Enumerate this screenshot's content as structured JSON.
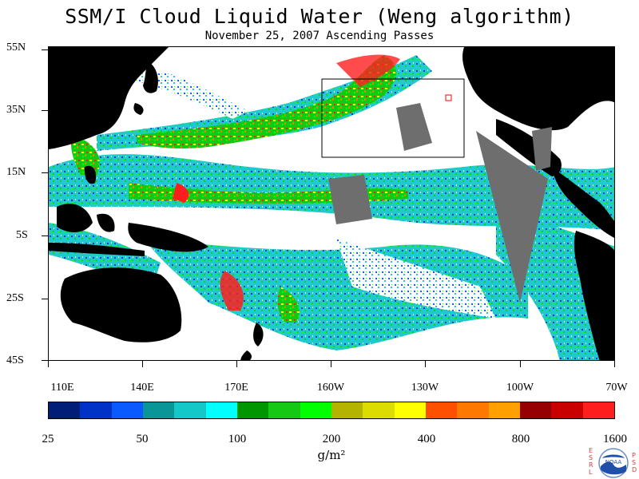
{
  "title": "SSM/I Cloud Liquid Water (Weng algorithm)",
  "subtitle": "November 25, 2007  Ascending Passes",
  "lat_labels": [
    "55N",
    "35N",
    "15N",
    "5S",
    "25S",
    "45S"
  ],
  "lon_labels": [
    "110E",
    "140E",
    "170E",
    "160W",
    "130W",
    "100W",
    "70W"
  ],
  "colorbar": {
    "colors": [
      "#001e78",
      "#0032c8",
      "#0a5aff",
      "#0a9696",
      "#14c8c8",
      "#00ffff",
      "#009600",
      "#14c814",
      "#00ff00",
      "#b4b400",
      "#dcdc00",
      "#ffff00",
      "#ff5000",
      "#ff7800",
      "#ffa000",
      "#960000",
      "#c80000",
      "#ff1e1e"
    ],
    "tick_labels": [
      "25",
      "50",
      "100",
      "200",
      "400",
      "800",
      "1600"
    ]
  },
  "unit": "g/m²",
  "logo": {
    "text": "NOAA",
    "left_text": "ESRL",
    "right_text": "PSD"
  }
}
